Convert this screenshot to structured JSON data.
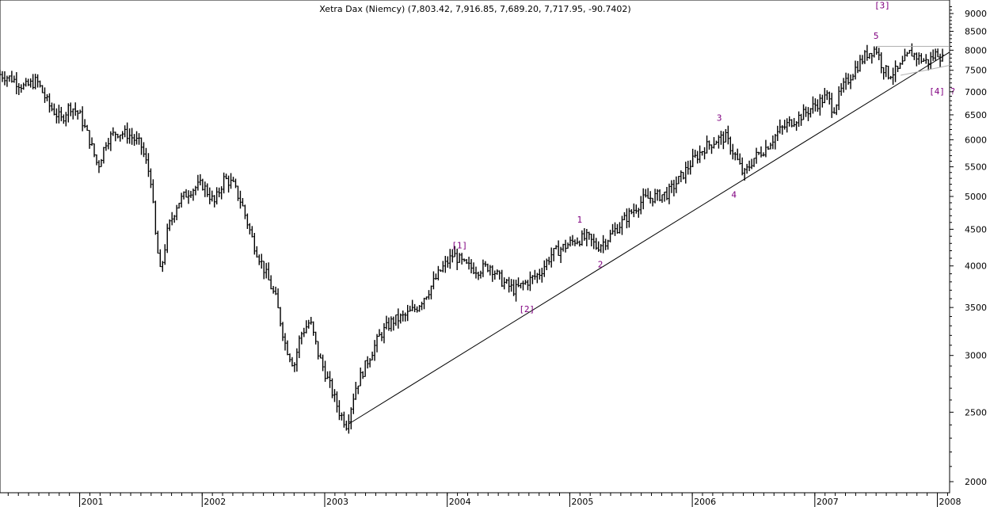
{
  "chart_data": {
    "type": "bar",
    "subtype": "weekly OHLC bars",
    "title": "Xetra Dax (Niemcy) (7,803.42, 7,916.85, 7,689.20, 7,717.95, -90.7402)",
    "xlabel": "",
    "ylabel": "",
    "y_scale": "log",
    "ylim": [
      1930,
      9400
    ],
    "xlim": [
      2000.35,
      2008.1
    ],
    "y_ticks": [
      "2000",
      "2500",
      "3000",
      "3500",
      "4000",
      "4500",
      "5000",
      "5500",
      "6000",
      "6500",
      "7000",
      "7500",
      "8000",
      "8500",
      "9000"
    ],
    "x_ticks": [
      "2001",
      "2002",
      "2003",
      "2004",
      "2005",
      "2006",
      "2007",
      "2008"
    ],
    "grid": false,
    "legend": "none",
    "colors": {
      "bars": "#000000",
      "lines": "#000000",
      "channel": "#b0b0b0",
      "labels": "#800080"
    },
    "series": [
      {
        "path": [
          [
            2000.35,
            7400
          ],
          [
            2000.45,
            7300
          ],
          [
            2000.55,
            7100
          ],
          [
            2000.65,
            7250
          ],
          [
            2000.75,
            6700
          ],
          [
            2000.85,
            6400
          ],
          [
            2000.92,
            6700
          ],
          [
            2001.0,
            6500
          ],
          [
            2001.08,
            6000
          ],
          [
            2001.15,
            5500
          ],
          [
            2001.22,
            6000
          ],
          [
            2001.3,
            6150
          ],
          [
            2001.4,
            6100
          ],
          [
            2001.5,
            5900
          ],
          [
            2001.58,
            5300
          ],
          [
            2001.62,
            4400
          ],
          [
            2001.66,
            3900
          ],
          [
            2001.72,
            4500
          ],
          [
            2001.8,
            4900
          ],
          [
            2001.9,
            5100
          ],
          [
            2002.0,
            5200
          ],
          [
            2002.1,
            4900
          ],
          [
            2002.18,
            5300
          ],
          [
            2002.25,
            5200
          ],
          [
            2002.32,
            4900
          ],
          [
            2002.42,
            4300
          ],
          [
            2002.52,
            3900
          ],
          [
            2002.6,
            3600
          ],
          [
            2002.68,
            3100
          ],
          [
            2002.75,
            2900
          ],
          [
            2002.8,
            3200
          ],
          [
            2002.88,
            3350
          ],
          [
            2002.95,
            3000
          ],
          [
            2003.05,
            2700
          ],
          [
            2003.12,
            2500
          ],
          [
            2003.18,
            2400
          ],
          [
            2003.25,
            2700
          ],
          [
            2003.35,
            2950
          ],
          [
            2003.45,
            3200
          ],
          [
            2003.55,
            3350
          ],
          [
            2003.65,
            3400
          ],
          [
            2003.75,
            3500
          ],
          [
            2003.85,
            3700
          ],
          [
            2003.95,
            3950
          ],
          [
            2004.05,
            4150
          ],
          [
            2004.15,
            4000
          ],
          [
            2004.25,
            3950
          ],
          [
            2004.35,
            4000
          ],
          [
            2004.45,
            3800
          ],
          [
            2004.55,
            3700
          ],
          [
            2004.65,
            3800
          ],
          [
            2004.75,
            3900
          ],
          [
            2004.85,
            4150
          ],
          [
            2004.95,
            4250
          ],
          [
            2005.05,
            4350
          ],
          [
            2005.15,
            4380
          ],
          [
            2005.22,
            4250
          ],
          [
            2005.3,
            4350
          ],
          [
            2005.4,
            4550
          ],
          [
            2005.5,
            4750
          ],
          [
            2005.6,
            4950
          ],
          [
            2005.7,
            5000
          ],
          [
            2005.8,
            5050
          ],
          [
            2005.9,
            5300
          ],
          [
            2006.0,
            5600
          ],
          [
            2006.1,
            5850
          ],
          [
            2006.2,
            6000
          ],
          [
            2006.27,
            6050
          ],
          [
            2006.35,
            5700
          ],
          [
            2006.42,
            5350
          ],
          [
            2006.5,
            5650
          ],
          [
            2006.6,
            5850
          ],
          [
            2006.7,
            6150
          ],
          [
            2006.8,
            6350
          ],
          [
            2006.9,
            6500
          ],
          [
            2007.0,
            6700
          ],
          [
            2007.1,
            6900
          ],
          [
            2007.15,
            6600
          ],
          [
            2007.22,
            7050
          ],
          [
            2007.32,
            7500
          ],
          [
            2007.42,
            7900
          ],
          [
            2007.5,
            8050
          ],
          [
            2007.55,
            7600
          ],
          [
            2007.6,
            7400
          ],
          [
            2007.68,
            7500
          ],
          [
            2007.78,
            7950
          ],
          [
            2007.85,
            7800
          ],
          [
            2007.92,
            7700
          ],
          [
            2008.0,
            7950
          ],
          [
            2008.05,
            7750
          ]
        ]
      }
    ],
    "trendline": [
      [
        2003.2,
        2410
      ],
      [
        2008.1,
        7950
      ]
    ],
    "channel": [
      [
        [
          2007.5,
          8100
        ],
        [
          2008.1,
          8100
        ]
      ],
      [
        [
          2007.7,
          7380
        ],
        [
          2008.1,
          7620
        ]
      ]
    ],
    "annotations": [
      {
        "text": "[1]",
        "x": 2004.1,
        "y": 4230
      },
      {
        "text": "[2]",
        "x": 2004.65,
        "y": 3450
      },
      {
        "text": "1",
        "x": 2005.08,
        "y": 4600
      },
      {
        "text": "2",
        "x": 2005.25,
        "y": 3980
      },
      {
        "text": "3",
        "x": 2006.22,
        "y": 6380
      },
      {
        "text": "4",
        "x": 2006.34,
        "y": 4980
      },
      {
        "text": "[3]",
        "x": 2007.55,
        "y": 9150
      },
      {
        "text": "5",
        "x": 2007.5,
        "y": 8300
      },
      {
        "text": "[4] ?",
        "x": 2008.04,
        "y": 6940
      }
    ]
  }
}
